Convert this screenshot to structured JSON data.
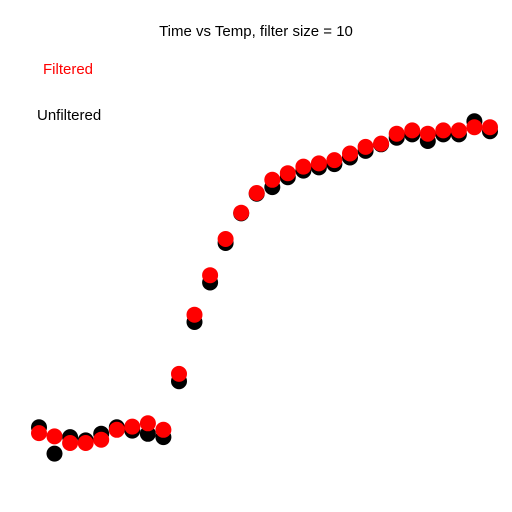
{
  "chart_data": {
    "type": "scatter",
    "title": "Time vs Temp, filter size = 10",
    "xlabel": "",
    "ylabel": "",
    "grid": false,
    "legend_placement": "top-left",
    "xlim": [
      0,
      30
    ],
    "ylim": [
      0,
      100
    ],
    "series": [
      {
        "name": "Unfiltered",
        "color": "#000000",
        "x": [
          0,
          1,
          2,
          3,
          4,
          5,
          6,
          7,
          8,
          9,
          10,
          11,
          12,
          13,
          14,
          15,
          16,
          17,
          18,
          19,
          20,
          21,
          22,
          23,
          24,
          25,
          26,
          27,
          28,
          29
        ],
        "y": [
          11,
          3,
          8,
          7,
          9,
          11,
          10,
          9,
          8,
          25,
          43,
          55,
          67,
          76,
          82,
          84,
          87,
          89,
          90,
          91,
          93,
          95,
          97,
          99,
          100,
          98,
          100,
          100,
          104,
          101
        ]
      },
      {
        "name": "Filtered",
        "color": "#ff0000",
        "x": [
          0,
          1,
          2,
          3,
          4,
          5,
          6,
          7,
          8,
          9,
          10,
          11,
          12,
          13,
          14,
          15,
          16,
          17,
          18,
          19,
          20,
          21,
          22,
          23,
          24,
          25,
          26,
          27,
          28,
          29
        ],
        "y": [
          8,
          7,
          5,
          5,
          6,
          9,
          10,
          11,
          9,
          26,
          44,
          56,
          67,
          75,
          81,
          85,
          87,
          89,
          90,
          91,
          93,
          95,
          96,
          99,
          100,
          99,
          100,
          100,
          101,
          101
        ]
      }
    ]
  }
}
